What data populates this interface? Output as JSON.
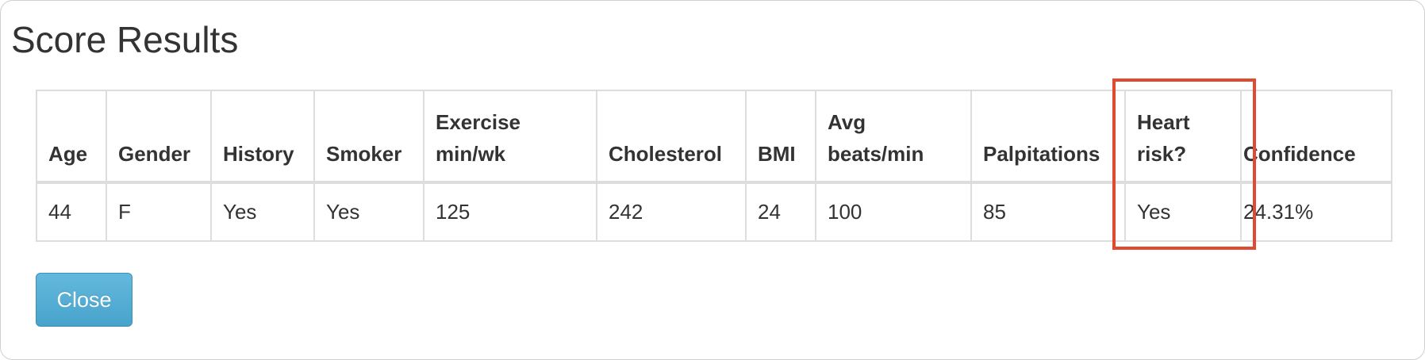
{
  "modal": {
    "title": "Score Results"
  },
  "table": {
    "headers": {
      "age": "Age",
      "gender": "Gender",
      "history": "History",
      "smoker": "Smoker",
      "exercise_line1": "Exercise",
      "exercise_line2": "min/wk",
      "cholesterol": "Cholesterol",
      "bmi": "BMI",
      "avg_line1": "Avg",
      "avg_line2": "beats/min",
      "palpitations": "Palpitations",
      "heart_line1": "Heart",
      "heart_line2": "risk?",
      "confidence": "Confidence"
    },
    "row": {
      "age": "44",
      "gender": "F",
      "history": "Yes",
      "smoker": "Yes",
      "exercise": "125",
      "cholesterol": "242",
      "bmi": "24",
      "avg_beats": "100",
      "palpitations": "85",
      "heart_risk": "Yes",
      "confidence": "24.31%"
    }
  },
  "buttons": {
    "close_label": "Close"
  },
  "colors": {
    "highlight": "#e04a33",
    "button": "#55aed6"
  }
}
